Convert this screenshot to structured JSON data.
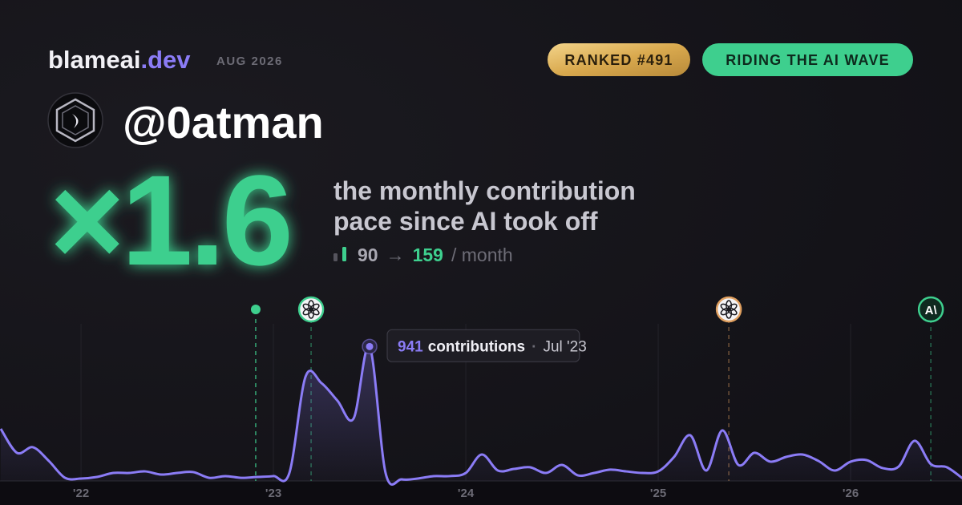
{
  "header": {
    "brand": "blameai",
    "brand_suffix": ".dev",
    "date": "AUG 2026",
    "rank_badge": "RANKED #491",
    "status_badge": "RIDING THE AI WAVE"
  },
  "profile": {
    "username": "@0atman"
  },
  "headline": {
    "multiplier": "×1.6",
    "line1": "the monthly contribution",
    "line2": "pace since AI took off",
    "before": "90",
    "arrow": "→",
    "after": "159",
    "unit": "/ month"
  },
  "chart_data": {
    "type": "line",
    "x": [
      2021.583,
      2021.667,
      2021.75,
      2021.833,
      2021.917,
      2022,
      2022.083,
      2022.167,
      2022.25,
      2022.333,
      2022.417,
      2022.5,
      2022.583,
      2022.667,
      2022.75,
      2022.833,
      2022.917,
      2023,
      2023.083,
      2023.167,
      2023.25,
      2023.333,
      2023.417,
      2023.5,
      2023.583,
      2023.667,
      2023.75,
      2023.833,
      2023.917,
      2024,
      2024.083,
      2024.167,
      2024.25,
      2024.333,
      2024.417,
      2024.5,
      2024.583,
      2024.667,
      2024.75,
      2024.833,
      2024.917,
      2025,
      2025.083,
      2025.167,
      2025.25,
      2025.333,
      2025.417,
      2025.5,
      2025.583,
      2025.667,
      2025.75,
      2025.833,
      2025.917,
      2026,
      2026.083,
      2026.167,
      2026.25,
      2026.333,
      2026.417,
      2026.5,
      2026.583
    ],
    "series": [
      {
        "color": "#8b7cf6",
        "values": [
          365,
          197,
          236,
          140,
          22,
          17,
          28,
          56,
          56,
          67,
          45,
          56,
          62,
          22,
          34,
          22,
          28,
          34,
          56,
          730,
          685,
          562,
          438,
          941,
          56,
          11,
          17,
          34,
          34,
          56,
          185,
          73,
          84,
          96,
          56,
          112,
          39,
          56,
          79,
          67,
          56,
          67,
          169,
          320,
          73,
          354,
          112,
          197,
          135,
          169,
          185,
          140,
          73,
          135,
          146,
          90,
          101,
          281,
          118,
          96,
          17
        ]
      }
    ],
    "xlim": [
      2021.579,
      2026.579
    ],
    "xticks": [
      {
        "value": 2022,
        "label": "'22"
      },
      {
        "value": 2023,
        "label": "'23"
      },
      {
        "value": 2024,
        "label": "'24"
      },
      {
        "value": 2025,
        "label": "'25"
      },
      {
        "value": 2026,
        "label": "'26"
      }
    ],
    "ylim": [
      0,
      1100
    ],
    "grid": true,
    "tooltip": {
      "index": 23,
      "label": "contributions",
      "separator": "·",
      "date": "Jul '23"
    },
    "events": [
      {
        "x": 2022.908,
        "color": "#3ecf8e",
        "marker": "dot"
      },
      {
        "x": 2023.196,
        "color": "#3ecf8e",
        "marker": "logo"
      },
      {
        "x": 2025.367,
        "color": "#e0a060",
        "marker": "logo"
      },
      {
        "x": 2026.417,
        "color": "#3ecf8e",
        "marker": "badge",
        "label": "A\\"
      }
    ]
  }
}
